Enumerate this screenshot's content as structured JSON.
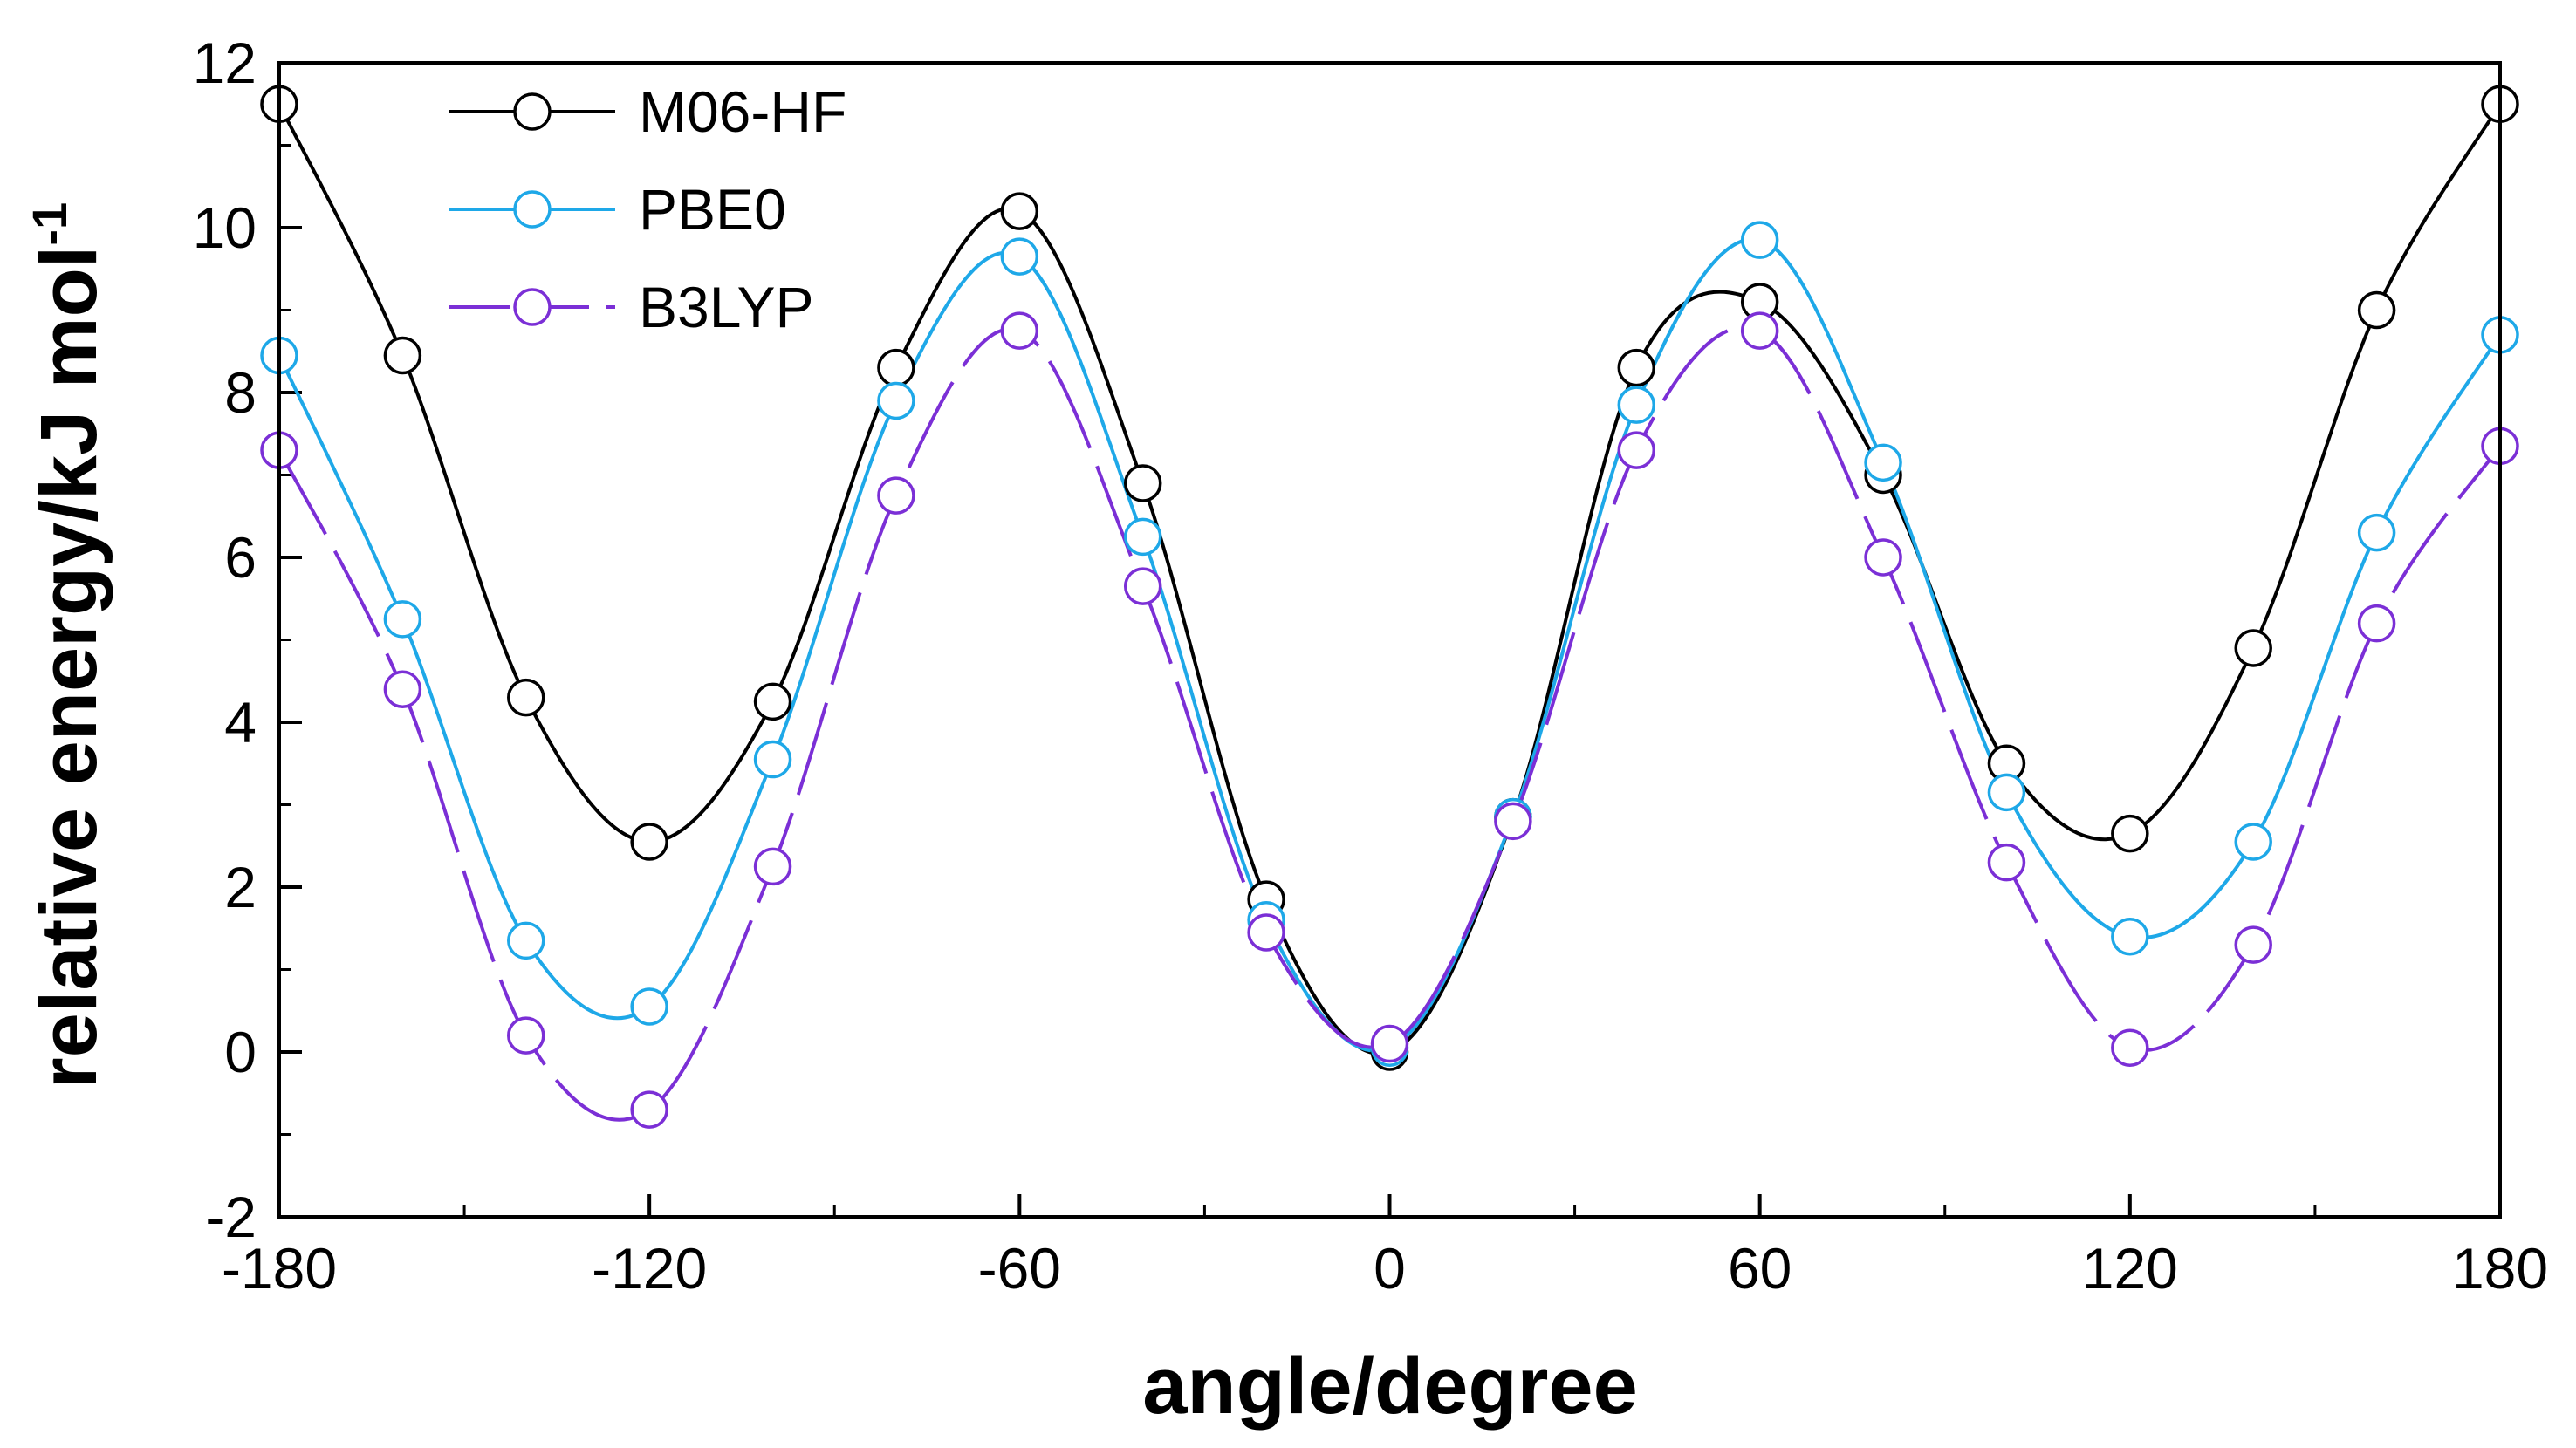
{
  "chart_data": {
    "type": "line",
    "title": "",
    "xlabel": "angle/degree",
    "ylabel": "relative energy/kJ mol",
    "ylabel_superscript": "-1",
    "xlim": [
      -180,
      180
    ],
    "ylim": [
      -2,
      12
    ],
    "xticks": [
      -180,
      -120,
      -60,
      0,
      60,
      120,
      180
    ],
    "xtick_labels": [
      "-180",
      "-120",
      "-60",
      "0",
      "60",
      "120",
      "180"
    ],
    "yticks": [
      -2,
      0,
      2,
      4,
      6,
      8,
      10,
      12
    ],
    "ytick_labels": [
      "-2",
      "0",
      "2",
      "4",
      "6",
      "8",
      "10",
      "12"
    ],
    "grid": false,
    "legend_position": "top-left",
    "x": [
      -180,
      -160,
      -140,
      -120,
      -100,
      -80,
      -60,
      -40,
      -20,
      0,
      20,
      40,
      60,
      80,
      100,
      120,
      140,
      160,
      180
    ],
    "series": [
      {
        "name": "M06-HF",
        "color": "#000000",
        "line_style": "solid",
        "marker": "open-circle",
        "values": [
          11.5,
          8.45,
          4.3,
          2.55,
          4.25,
          8.3,
          10.2,
          6.9,
          1.85,
          0.0,
          2.85,
          8.3,
          9.1,
          7.0,
          3.5,
          2.65,
          4.9,
          9.0,
          11.5
        ]
      },
      {
        "name": "PBE0",
        "color": "#1ea8e8",
        "line_style": "solid",
        "marker": "open-circle",
        "values": [
          8.45,
          5.25,
          1.35,
          0.55,
          3.55,
          7.9,
          9.65,
          6.25,
          1.6,
          0.05,
          2.85,
          7.85,
          9.85,
          7.15,
          3.15,
          1.4,
          2.55,
          6.3,
          8.7
        ]
      },
      {
        "name": "B3LYP",
        "color": "#7b2fd6",
        "line_style": "dashed",
        "marker": "open-circle",
        "values": [
          7.3,
          4.4,
          0.2,
          -0.7,
          2.25,
          6.75,
          8.75,
          5.65,
          1.45,
          0.1,
          2.8,
          7.3,
          8.75,
          6.0,
          2.3,
          0.05,
          1.3,
          5.2,
          7.35
        ]
      }
    ]
  }
}
